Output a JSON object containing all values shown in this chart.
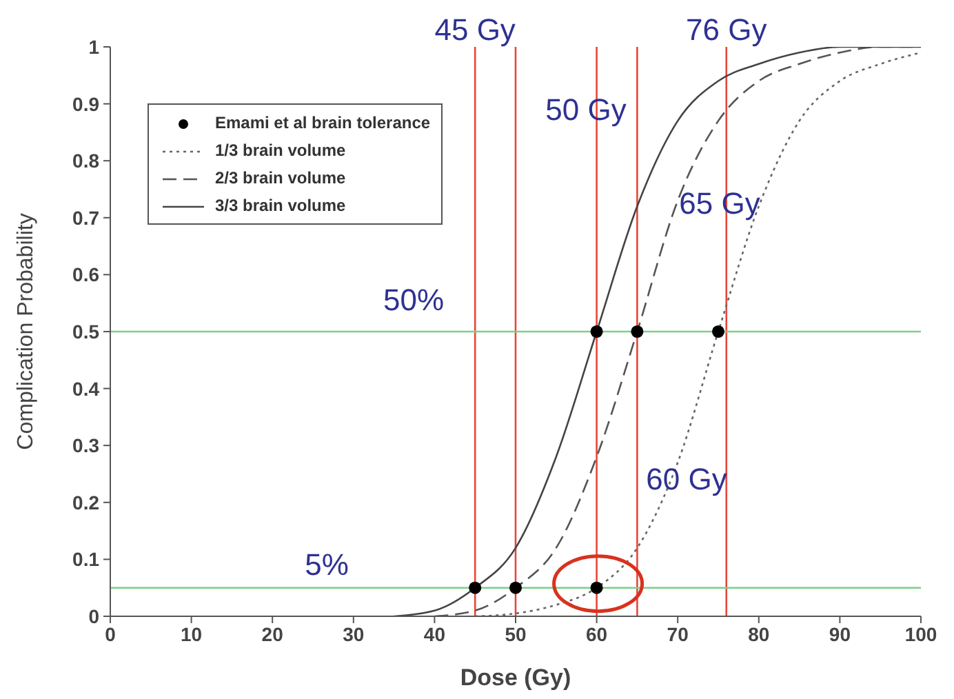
{
  "chart_data": {
    "type": "line",
    "xlabel": "Dose (Gy)",
    "ylabel": "Complication Probability",
    "xlim": [
      0,
      100
    ],
    "ylim": [
      0,
      1
    ],
    "xticks": [
      0,
      10,
      20,
      30,
      40,
      50,
      60,
      70,
      80,
      90,
      100
    ],
    "yticks": [
      0,
      0.1,
      0.2,
      0.3,
      0.4,
      0.5,
      0.6,
      0.7,
      0.8,
      0.9,
      1
    ],
    "grid": false,
    "legend": "top left",
    "marker": "none",
    "series": [
      {
        "name": "Emami et al brain tolerance",
        "type": "scatter",
        "marker": "circle",
        "color": "#000000",
        "x": [
          45,
          50,
          60,
          60,
          65,
          75
        ],
        "values": [
          0.05,
          0.05,
          0.05,
          0.5,
          0.5,
          0.5
        ]
      },
      {
        "name": "1/3 brain volume",
        "line_style": "dotted",
        "color": "#666666",
        "x": [
          45,
          50,
          55,
          60,
          65,
          70,
          75,
          80,
          85,
          90,
          95,
          100
        ],
        "values": [
          0,
          0.005,
          0.02,
          0.05,
          0.12,
          0.27,
          0.5,
          0.72,
          0.87,
          0.94,
          0.97,
          0.99
        ]
      },
      {
        "name": "2/3 brain volume",
        "line_style": "dashed",
        "color": "#555555",
        "x": [
          40,
          45,
          50,
          55,
          60,
          65,
          70,
          75,
          80,
          85,
          90,
          95,
          100
        ],
        "values": [
          0,
          0.01,
          0.05,
          0.12,
          0.28,
          0.5,
          0.73,
          0.87,
          0.94,
          0.97,
          0.99,
          1,
          1
        ]
      },
      {
        "name": "3/3 brain volume",
        "line_style": "solid",
        "color": "#444444",
        "x": [
          35,
          40,
          45,
          50,
          55,
          60,
          65,
          70,
          75,
          80,
          85,
          90,
          100
        ],
        "values": [
          0,
          0.01,
          0.05,
          0.12,
          0.28,
          0.5,
          0.72,
          0.87,
          0.94,
          0.97,
          0.99,
          1,
          1
        ]
      }
    ],
    "ref_lines": [
      {
        "axis": "x",
        "value": 45,
        "label": "45 Gy",
        "color": "#e8463a"
      },
      {
        "axis": "x",
        "value": 50,
        "color": "#e8463a"
      },
      {
        "axis": "x",
        "value": 60,
        "color": "#e8463a"
      },
      {
        "axis": "x",
        "value": 65,
        "color": "#e8463a"
      },
      {
        "axis": "x",
        "value": 76,
        "label": "76 Gy",
        "color": "#e8463a"
      },
      {
        "axis": "y",
        "value": 0.5,
        "color": "#7ccf8a"
      },
      {
        "axis": "y",
        "value": 0.05,
        "color": "#7ccf8a"
      }
    ],
    "annotations": [
      "50 Gy",
      "65 Gy",
      "60 Gy",
      "50%",
      "5%"
    ]
  }
}
